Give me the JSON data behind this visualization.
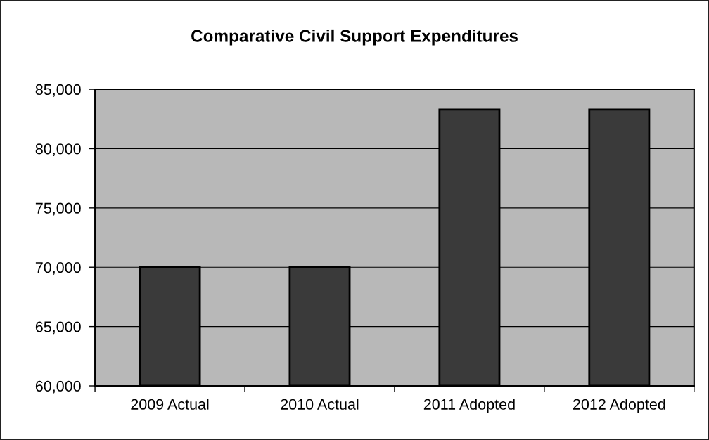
{
  "chart_data": {
    "type": "bar",
    "title": "Comparative Civil Support Expenditures",
    "categories": [
      "2009 Actual",
      "2010 Actual",
      "2011 Adopted",
      "2012 Adopted"
    ],
    "values": [
      70000,
      70000,
      83300,
      83300
    ],
    "color": "#3a3a3a",
    "ylim": [
      60000,
      85000
    ],
    "yticks": [
      {
        "value": 60000,
        "label": "60,000"
      },
      {
        "value": 65000,
        "label": "65,000"
      },
      {
        "value": 70000,
        "label": "70,000"
      },
      {
        "value": 75000,
        "label": "75,000"
      },
      {
        "value": 80000,
        "label": "80,000"
      },
      {
        "value": 85000,
        "label": "85,000"
      }
    ],
    "grid": "y",
    "legend": false
  }
}
